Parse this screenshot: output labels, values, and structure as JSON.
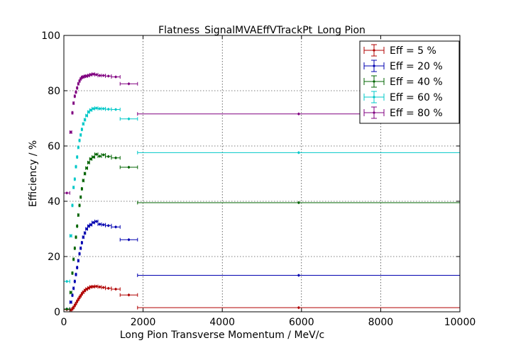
{
  "chart_data": {
    "type": "scatter",
    "title": "Flatness_SignalMVAEffVTrackPt_Long Pion",
    "xlabel": "Long Pion Transverse Momentum / MeV/c",
    "ylabel": "Efficiency / %",
    "xlim": [
      0,
      10000
    ],
    "ylim": [
      0,
      100
    ],
    "x_ticks": [
      0,
      2000,
      4000,
      6000,
      8000,
      10000
    ],
    "y_ticks": [
      0,
      20,
      40,
      60,
      80,
      100
    ],
    "grid": true,
    "legend_position": "top-right",
    "bins": [
      {
        "x": 75,
        "xerr": 75
      },
      {
        "x": 175,
        "xerr": 25
      },
      {
        "x": 215,
        "xerr": 15
      },
      {
        "x": 245,
        "xerr": 15
      },
      {
        "x": 275,
        "xerr": 15
      },
      {
        "x": 305,
        "xerr": 15
      },
      {
        "x": 335,
        "xerr": 15
      },
      {
        "x": 365,
        "xerr": 15
      },
      {
        "x": 395,
        "xerr": 15
      },
      {
        "x": 425,
        "xerr": 15
      },
      {
        "x": 455,
        "xerr": 15
      },
      {
        "x": 490,
        "xerr": 20
      },
      {
        "x": 530,
        "xerr": 20
      },
      {
        "x": 575,
        "xerr": 25
      },
      {
        "x": 625,
        "xerr": 25
      },
      {
        "x": 680,
        "xerr": 30
      },
      {
        "x": 745,
        "xerr": 35
      },
      {
        "x": 820,
        "xerr": 40
      },
      {
        "x": 905,
        "xerr": 45
      },
      {
        "x": 1000,
        "xerr": 50
      },
      {
        "x": 1125,
        "xerr": 75
      },
      {
        "x": 1310,
        "xerr": 110
      },
      {
        "x": 1640,
        "xerr": 220
      },
      {
        "x": 5930,
        "xerr": 4070
      }
    ],
    "series": [
      {
        "name": "Eff = 5 %",
        "color": "#b00000",
        "values": [
          0.8,
          0.7,
          1.1,
          1.6,
          2.3,
          3.0,
          3.8,
          4.5,
          5.2,
          5.8,
          6.5,
          7.1,
          7.7,
          8.2,
          8.6,
          9.0,
          9.1,
          9.2,
          9.0,
          8.8,
          8.5,
          8.2,
          6.1,
          1.5
        ]
      },
      {
        "name": "Eff = 20 %",
        "color": "#0000b0",
        "values": [
          1.0,
          3.5,
          6.0,
          8.5,
          11.0,
          13.5,
          16.0,
          18.5,
          21.0,
          23.0,
          25.0,
          27.0,
          28.5,
          30.0,
          31.0,
          31.5,
          32.3,
          32.7,
          31.7,
          31.5,
          31.2,
          30.7,
          26.1,
          13.2
        ]
      },
      {
        "name": "Eff = 40 %",
        "color": "#006400",
        "values": [
          1.0,
          7.0,
          14.0,
          19.0,
          23.0,
          27.0,
          31.0,
          35.0,
          38.5,
          41.5,
          44.5,
          47.5,
          50.0,
          52.0,
          54.0,
          55.3,
          56.0,
          57.0,
          56.3,
          56.8,
          56.2,
          55.7,
          52.3,
          39.5
        ]
      },
      {
        "name": "Eff = 60 %",
        "color": "#00c8c8",
        "values": [
          11.0,
          27.5,
          38.5,
          45.0,
          48.0,
          52.5,
          56.0,
          59.5,
          62.0,
          64.0,
          66.0,
          68.0,
          69.5,
          71.0,
          72.3,
          73.0,
          73.5,
          73.7,
          73.5,
          73.5,
          73.3,
          73.2,
          69.8,
          57.6
        ]
      },
      {
        "name": "Eff = 80 %",
        "color": "#800080",
        "values": [
          43.0,
          65.0,
          72.0,
          75.5,
          78.0,
          79.5,
          81.0,
          82.5,
          83.5,
          84.3,
          84.8,
          85.0,
          85.2,
          85.3,
          85.5,
          85.8,
          86.0,
          85.8,
          85.5,
          85.5,
          85.3,
          85.0,
          82.5,
          71.6
        ]
      }
    ]
  }
}
